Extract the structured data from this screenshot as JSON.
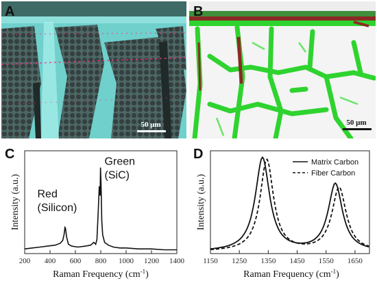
{
  "panels": {
    "A": {
      "letter": "A",
      "scale_bar": "50 µm"
    },
    "B": {
      "letter": "B",
      "scale_bar": "50 µm"
    }
  },
  "colors": {
    "silicon_red": "#b22222",
    "sic_green": "#33cc33",
    "micro_a_bg": "#6fd0cc",
    "micro_a_fiber": "#3b4a48"
  },
  "chart_data": [
    {
      "id": "C",
      "letter": "C",
      "type": "line",
      "xlabel": "Raman Frequency (cm",
      "xlabel_sup": "-1",
      "xlabel_close": ")",
      "ylabel": "Intensity (a.u.)",
      "xlim": [
        200,
        1400
      ],
      "xticks": [
        200,
        400,
        600,
        800,
        1000,
        1200,
        1400
      ],
      "ylim": [
        0,
        1.1
      ],
      "annotations": [
        {
          "id": "red",
          "lines": [
            "Red",
            "(Silicon)"
          ],
          "x": 300,
          "y": 0.6
        },
        {
          "id": "green",
          "lines": [
            "Green",
            "(SiC)"
          ],
          "x": 830,
          "y": 0.95
        }
      ],
      "series": [
        {
          "x": [
            200,
            260,
            320,
            380,
            440,
            480,
            500,
            510,
            518,
            522,
            530,
            545,
            570,
            620,
            680,
            720,
            745,
            760,
            770,
            780,
            788,
            795,
            798,
            802,
            808,
            815,
            830,
            860,
            900,
            950,
            1000,
            1100,
            1200,
            1300,
            1400
          ],
          "y": [
            0.05,
            0.06,
            0.07,
            0.08,
            0.09,
            0.11,
            0.14,
            0.2,
            0.28,
            0.27,
            0.18,
            0.1,
            0.08,
            0.07,
            0.08,
            0.09,
            0.12,
            0.1,
            0.15,
            0.45,
            0.72,
            0.62,
            0.92,
            0.75,
            0.35,
            0.2,
            0.12,
            0.09,
            0.07,
            0.06,
            0.06,
            0.05,
            0.05,
            0.04,
            0.04
          ]
        }
      ]
    },
    {
      "id": "D",
      "letter": "D",
      "type": "line",
      "xlabel": "Raman Frequency (cm",
      "xlabel_sup": "-1",
      "xlabel_close": ")",
      "ylabel": "Intensity (a.u.)",
      "xlim": [
        1150,
        1700
      ],
      "xticks": [
        1150,
        1250,
        1350,
        1450,
        1550,
        1650
      ],
      "ylim": [
        0,
        1.1
      ],
      "legend": "top-right",
      "series": [
        {
          "name": "Matrix Carbon",
          "style": "solid",
          "peaks": [
            {
              "center": 1330,
              "height": 1.0,
              "width": 30
            },
            {
              "center": 1582,
              "height": 0.72,
              "width": 30
            }
          ]
        },
        {
          "name": "Fiber Carbon",
          "style": "dashed",
          "peaks": [
            {
              "center": 1345,
              "height": 0.98,
              "width": 28
            },
            {
              "center": 1595,
              "height": 0.68,
              "width": 30
            }
          ]
        }
      ]
    }
  ]
}
